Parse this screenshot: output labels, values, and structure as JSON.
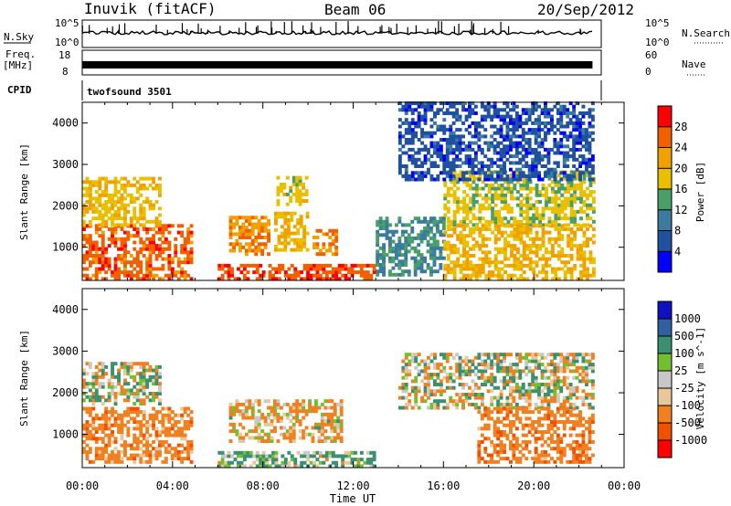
{
  "header": {
    "station": "Inuvik (fitACF)",
    "beam": "Beam 06",
    "date": "20/Sep/2012"
  },
  "summary_panel": {
    "nsky_label": "N.Sky",
    "nsky_ticks": [
      "10^5",
      "10^0"
    ],
    "nsearch_label": "N.Search",
    "freq_label_1": "Freq.",
    "freq_label_2": "[MHz]",
    "freq_ticks": [
      "18",
      "8"
    ],
    "nave_label": "Nave",
    "nave_ticks": [
      "60",
      "0"
    ],
    "cpid_label": "CPID",
    "cpid_value": "twofsound 3501"
  },
  "chart_data": [
    {
      "type": "heatmap",
      "panel": "power",
      "ylabel": "Slant Range [km]",
      "xlabel": "",
      "x_ticks": [
        "00:00",
        "04:00",
        "08:00",
        "12:00",
        "16:00",
        "20:00",
        "00:00"
      ],
      "y_ticks": [
        "1000",
        "2000",
        "3000",
        "4000"
      ],
      "xlim_hours": [
        0,
        24
      ],
      "ylim_km": [
        200,
        4500
      ],
      "data_end_hour": 22.6,
      "colorbar": {
        "label": "Power [dB]",
        "levels": [
          0,
          4,
          8,
          12,
          16,
          20,
          24,
          28,
          32
        ],
        "tick_labels": [
          "4",
          "8",
          "12",
          "16",
          "20",
          "24",
          "28"
        ],
        "colors": [
          "#0000ff",
          "#2050a0",
          "#3c7ba0",
          "#48a068",
          "#e8c000",
          "#f0a000",
          "#f06000",
          "#ff0000"
        ]
      },
      "regions": [
        {
          "t": [
            0.0,
            4.8
          ],
          "r": [
            200,
            1500
          ],
          "level": 26
        },
        {
          "t": [
            0.0,
            3.5
          ],
          "r": [
            1500,
            2700
          ],
          "level": 19
        },
        {
          "t": [
            6.5,
            8.2
          ],
          "r": [
            800,
            1700
          ],
          "level": 23
        },
        {
          "t": [
            8.5,
            10.0
          ],
          "r": [
            900,
            1800
          ],
          "level": 20
        },
        {
          "t": [
            10.2,
            11.2
          ],
          "r": [
            800,
            1400
          ],
          "level": 24
        },
        {
          "t": [
            6.0,
            13.0
          ],
          "r": [
            200,
            600
          ],
          "level": 27
        },
        {
          "t": [
            8.6,
            10.0
          ],
          "r": [
            2000,
            2700
          ],
          "level": 18
        },
        {
          "t": [
            13.0,
            16.0
          ],
          "r": [
            300,
            1700
          ],
          "level": 12
        },
        {
          "t": [
            16.0,
            22.6
          ],
          "r": [
            1500,
            2800
          ],
          "level": 17
        },
        {
          "t": [
            16.0,
            22.6
          ],
          "r": [
            200,
            1500
          ],
          "level": 20
        },
        {
          "t": [
            14.0,
            22.6
          ],
          "r": [
            2600,
            4500
          ],
          "level": 6
        }
      ]
    },
    {
      "type": "heatmap",
      "panel": "velocity",
      "ylabel": "Slant Range [km]",
      "xlabel": "Time UT",
      "x_ticks": [
        "00:00",
        "04:00",
        "08:00",
        "12:00",
        "16:00",
        "20:00",
        "00:00"
      ],
      "y_ticks": [
        "1000",
        "2000",
        "3000",
        "4000"
      ],
      "xlim_hours": [
        0,
        24
      ],
      "ylim_km": [
        200,
        4500
      ],
      "data_end_hour": 22.6,
      "colorbar": {
        "label": "Velocity [m s^-1]",
        "levels": [
          -1500,
          -1000,
          -500,
          -100,
          -25,
          25,
          100,
          500,
          1000,
          1500
        ],
        "tick_labels": [
          "1000",
          "500",
          "100",
          "25",
          "-25",
          "-100",
          "-500",
          "-1000"
        ],
        "colors": [
          "#ff0000",
          "#f05000",
          "#f08020",
          "#e8c89a",
          "#c8c8c8",
          "#70c030",
          "#3a9070",
          "#3060a0",
          "#1010c0"
        ]
      },
      "regions": [
        {
          "t": [
            0.0,
            4.8
          ],
          "r": [
            300,
            1600
          ],
          "level": -300
        },
        {
          "t": [
            0.0,
            3.5
          ],
          "r": [
            1700,
            2700
          ],
          "level": 0
        },
        {
          "t": [
            6.0,
            13.0
          ],
          "r": [
            200,
            600
          ],
          "level": 150
        },
        {
          "t": [
            6.5,
            11.5
          ],
          "r": [
            800,
            1800
          ],
          "level": -150
        },
        {
          "t": [
            14.0,
            22.6
          ],
          "r": [
            1600,
            2900
          ],
          "level": 0
        },
        {
          "t": [
            17.5,
            22.6
          ],
          "r": [
            300,
            1600
          ],
          "level": -350
        }
      ]
    }
  ]
}
